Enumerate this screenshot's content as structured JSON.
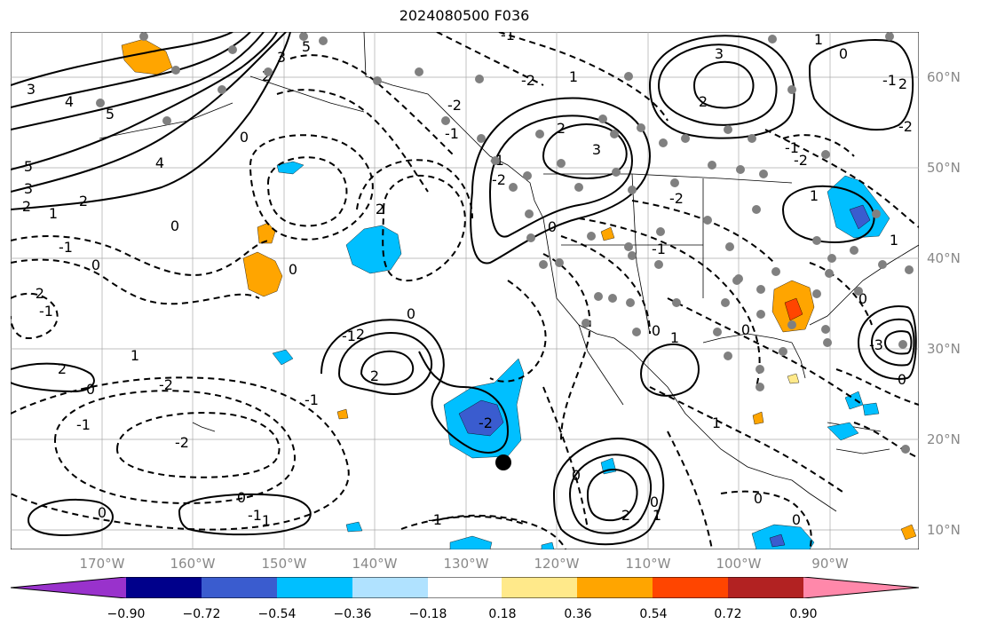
{
  "title": "2024080500 F036",
  "lon_labels": [
    "170°W",
    "160°W",
    "150°W",
    "140°W",
    "130°W",
    "120°W",
    "110°W",
    "100°W",
    "90°W"
  ],
  "lat_labels": [
    "60°N",
    "50°N",
    "40°N",
    "30°N",
    "20°N",
    "10°N"
  ],
  "colorbar": {
    "tick_labels": [
      "−0.90",
      "−0.72",
      "−0.54",
      "−0.36",
      "−0.18",
      "0.18",
      "0.36",
      "0.54",
      "0.72",
      "0.90"
    ],
    "colors": [
      "#9932cc",
      "#00008b",
      "#3a5ccf",
      "#00bfff",
      "#b0e2ff",
      "#ffffff",
      "#ffe98a",
      "#ffa500",
      "#ff4500",
      "#b22222",
      "#ff88aa"
    ]
  },
  "contour_labels": [
    "5",
    "3",
    "4",
    "5",
    "5",
    "4",
    "3",
    "2",
    "1",
    "2",
    "0",
    "3",
    "2",
    "-1",
    "0",
    "0",
    "-2",
    "-1",
    "1",
    "2",
    "-2",
    "0",
    "-2",
    "-1",
    "2",
    "0",
    "-1",
    "-2",
    "2",
    "0",
    "-1",
    "0",
    "-1",
    "0",
    "1",
    "2",
    "3",
    "2",
    "2",
    "-1",
    "-2",
    "-2",
    "1",
    "-1",
    "-2",
    "-1",
    "0",
    "3",
    "1",
    "2",
    "-1",
    "0",
    "-2",
    "0",
    "-2",
    "-1",
    "0",
    "1",
    "0",
    "2",
    "1",
    "0",
    "1",
    "-1",
    "-2",
    "-3",
    "1",
    "1",
    "0",
    "0",
    "-1",
    "0",
    "0"
  ],
  "colors": {
    "neg_fill_light": "#b0e2ff",
    "neg_fill_mid": "#00bfff",
    "neg_fill_dark": "#3a5ccf",
    "pos_fill_yellow": "#ffe98a",
    "pos_fill_orange": "#ffa500",
    "pos_fill_red": "#ff4500",
    "station_dot": "#808080",
    "marker": "#000000"
  }
}
